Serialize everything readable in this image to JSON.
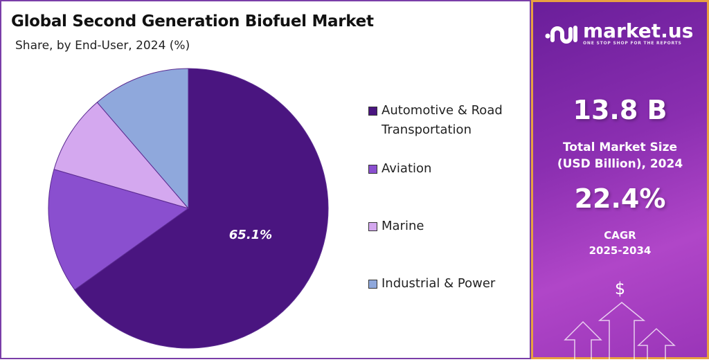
{
  "chart_data": {
    "type": "pie",
    "title": "Global Second Generation Biofuel Market",
    "subtitle": "Share, by End-User, 2024 (%)",
    "series": [
      {
        "name": "Automotive & Road Transportation",
        "value": 65.1,
        "color": "#4a1580",
        "label": "65.1%"
      },
      {
        "name": "Aviation",
        "value": 14.4,
        "color": "#8a4fcf"
      },
      {
        "name": "Marine",
        "value": 9.2,
        "color": "#d4a8ef"
      },
      {
        "name": "Industrial & Power",
        "value": 11.3,
        "color": "#8fa8dc"
      }
    ],
    "legend_placement": "right"
  },
  "legend": {
    "l0a": "Automotive & Road",
    "l0b": "Transportation",
    "l1": "Aviation",
    "l2": "Marine",
    "l3": "Industrial & Power"
  },
  "panel": {
    "brand": "market.us",
    "tagline": "ONE STOP SHOP FOR THE REPORTS",
    "market_size": "13.8 B",
    "market_size_label1": "Total Market Size",
    "market_size_label2": "(USD Billion), 2024",
    "cagr": "22.4%",
    "cagr_label1": "CAGR",
    "cagr_label2": "2025-2034",
    "dollar": "$"
  }
}
